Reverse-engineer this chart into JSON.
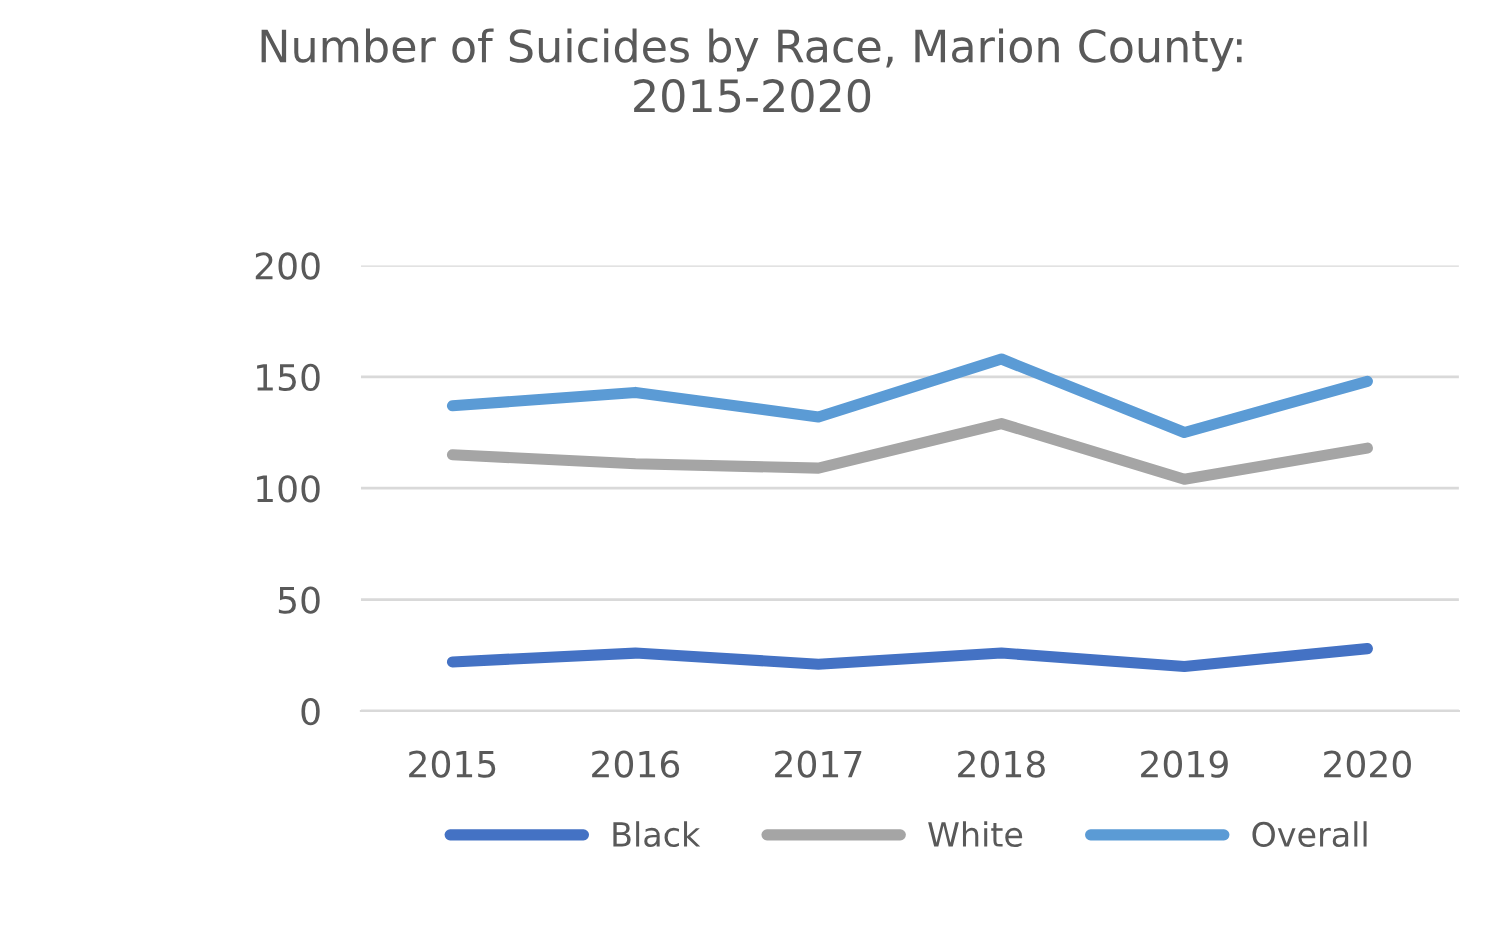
{
  "chart_data": {
    "type": "line",
    "title": "Number of Suicides by Race, Marion County:\n2015-2020",
    "categories": [
      "2015",
      "2016",
      "2017",
      "2018",
      "2019",
      "2020"
    ],
    "series": [
      {
        "name": "Black",
        "color": "#4472c4",
        "values": [
          22,
          26,
          21,
          26,
          20,
          28
        ]
      },
      {
        "name": "White",
        "color": "#a5a5a5",
        "values": [
          115,
          111,
          109,
          129,
          104,
          118
        ]
      },
      {
        "name": "Overall",
        "color": "#5b9bd5",
        "values": [
          137,
          143,
          132,
          158,
          125,
          148
        ]
      }
    ],
    "ylim": [
      0,
      200
    ],
    "yticks": [
      0,
      50,
      100,
      150,
      200
    ],
    "grid": "y",
    "legend": "bottom",
    "marker": "none",
    "line_style": "solid"
  }
}
